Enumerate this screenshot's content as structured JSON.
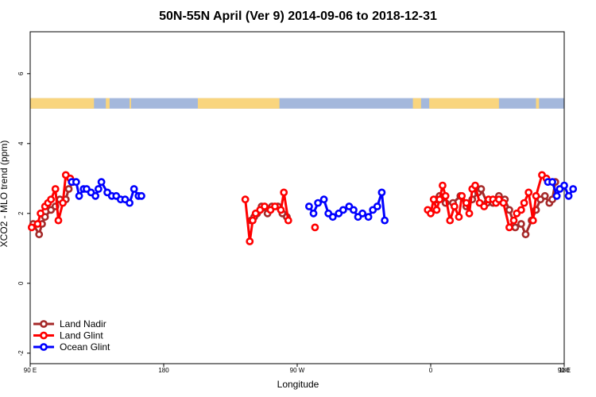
{
  "chart_data": {
    "type": "line",
    "title": "50N-55N April (Ver 9)   2014-09-06 to 2018-12-31",
    "xlabel": "Longitude",
    "ylabel": "XCO2 - MLO trend (ppm)",
    "xlim": [
      90,
      450
    ],
    "ylim": [
      -2.3,
      7.2
    ],
    "x_ticks": [
      {
        "value": 90,
        "label": "90 E"
      },
      {
        "value": 180,
        "label": "180"
      },
      {
        "value": 270,
        "label": "90 W"
      },
      {
        "value": 360,
        "label": "0"
      },
      {
        "value": 450,
        "label": "90 E"
      }
    ],
    "x_ticks_right": [
      {
        "value": 450,
        "label": "180"
      }
    ],
    "y_ticks": [
      {
        "value": -2,
        "label": "-2"
      },
      {
        "value": 0,
        "label": "0"
      },
      {
        "value": 2,
        "label": "2"
      },
      {
        "value": 4,
        "label": "4"
      },
      {
        "value": 6,
        "label": "6"
      }
    ],
    "land_ocean_strip": {
      "y_range": [
        5.0,
        5.3
      ],
      "land_color": "#F9D57E",
      "ocean_color": "#A4B8DC",
      "land_segments": [
        [
          90,
          133
        ],
        [
          141,
          143.5
        ],
        [
          157,
          158
        ],
        [
          203,
          258
        ],
        [
          348,
          353.5
        ],
        [
          359,
          406
        ],
        [
          431,
          433
        ]
      ]
    },
    "legend": {
      "position": "bottom-left",
      "entries": [
        "Land Nadir",
        "Land Glint",
        "Ocean Glint"
      ]
    },
    "series": [
      {
        "name": "Land Nadir",
        "color": "#A52A2A",
        "segments": [
          [
            [
              92,
              1.7
            ],
            [
              96,
              1.4
            ],
            [
              98,
              1.7
            ],
            [
              100,
              1.9
            ],
            [
              104,
              2.1
            ],
            [
              107,
              2.2
            ],
            [
              110,
              2.4
            ],
            [
              114,
              2.4
            ],
            [
              116,
              2.7
            ],
            [
              119,
              2.9
            ]
          ],
          [
            [
              239,
              1.8
            ],
            [
              241,
              1.9
            ],
            [
              243,
              2.0
            ],
            [
              246,
              2.2
            ],
            [
              250,
              2.0
            ],
            [
              253,
              2.2
            ],
            [
              257,
              2.2
            ],
            [
              260,
              2.0
            ],
            [
              263,
              1.9
            ]
          ],
          [
            [
              364,
              2.4
            ],
            [
              366,
              2.5
            ],
            [
              370,
              2.3
            ],
            [
              375,
              2.3
            ],
            [
              380,
              2.5
            ],
            [
              384,
              2.2
            ],
            [
              388,
              2.4
            ],
            [
              392,
              2.6
            ],
            [
              394,
              2.7
            ],
            [
              398,
              2.3
            ],
            [
              402,
              2.3
            ],
            [
              406,
              2.5
            ],
            [
              410,
              2.4
            ],
            [
              413,
              2.1
            ],
            [
              417,
              1.6
            ],
            [
              421,
              1.7
            ],
            [
              424,
              1.4
            ],
            [
              428,
              1.8
            ],
            [
              431,
              2.1
            ],
            [
              434,
              2.4
            ],
            [
              437,
              2.5
            ],
            [
              440,
              2.3
            ],
            [
              442,
              2.4
            ],
            [
              444,
              2.9
            ]
          ]
        ]
      },
      {
        "name": "Land Glint",
        "color": "#FF0000",
        "segments": [
          [
            [
              91,
              1.6
            ],
            [
              95,
              1.7
            ],
            [
              97,
              2.0
            ],
            [
              100,
              2.2
            ],
            [
              102,
              2.3
            ],
            [
              104,
              2.4
            ],
            [
              107,
              2.7
            ],
            [
              109,
              1.8
            ],
            [
              112,
              2.3
            ],
            [
              114,
              3.1
            ],
            [
              117,
              3.0
            ]
          ],
          [
            [
              235,
              2.4
            ],
            [
              238,
              1.2
            ],
            [
              240,
              1.8
            ],
            [
              242,
              2.0
            ],
            [
              245,
              2.1
            ],
            [
              248,
              2.2
            ],
            [
              252,
              2.1
            ],
            [
              255,
              2.2
            ],
            [
              259,
              2.1
            ],
            [
              261,
              2.6
            ],
            [
              264,
              1.8
            ]
          ],
          [
            [
              282,
              1.6
            ]
          ],
          [
            [
              358,
              2.1
            ],
            [
              360,
              2.0
            ],
            [
              362,
              2.4
            ],
            [
              364,
              2.1
            ],
            [
              366,
              2.4
            ],
            [
              368,
              2.8
            ],
            [
              370,
              2.5
            ],
            [
              373,
              1.8
            ],
            [
              376,
              2.2
            ],
            [
              379,
              1.9
            ],
            [
              381,
              2.5
            ],
            [
              384,
              2.3
            ],
            [
              386,
              2.0
            ],
            [
              388,
              2.7
            ],
            [
              390,
              2.8
            ],
            [
              393,
              2.3
            ],
            [
              396,
              2.2
            ],
            [
              399,
              2.4
            ],
            [
              402,
              2.4
            ],
            [
              404,
              2.3
            ],
            [
              406,
              2.4
            ],
            [
              409,
              2.3
            ],
            [
              413,
              1.6
            ],
            [
              416,
              1.8
            ],
            [
              418,
              2.0
            ],
            [
              421,
              2.1
            ],
            [
              423,
              2.3
            ],
            [
              426,
              2.6
            ],
            [
              429,
              1.8
            ],
            [
              431,
              2.5
            ],
            [
              435,
              3.1
            ],
            [
              438,
              3.0
            ]
          ]
        ]
      },
      {
        "name": "Ocean Glint",
        "color": "#0000FF",
        "segments": [
          [
            [
              118,
              2.9
            ],
            [
              121,
              2.9
            ],
            [
              123,
              2.5
            ],
            [
              126,
              2.7
            ],
            [
              128,
              2.7
            ],
            [
              131,
              2.6
            ],
            [
              134,
              2.5
            ],
            [
              136,
              2.7
            ],
            [
              138,
              2.9
            ],
            [
              142,
              2.6
            ],
            [
              145,
              2.5
            ],
            [
              148,
              2.5
            ],
            [
              151,
              2.4
            ],
            [
              154,
              2.4
            ],
            [
              157,
              2.3
            ],
            [
              160,
              2.7
            ],
            [
              163,
              2.5
            ],
            [
              165,
              2.5
            ]
          ],
          [
            [
              278,
              2.2
            ],
            [
              281,
              2.0
            ],
            [
              284,
              2.3
            ],
            [
              288,
              2.4
            ],
            [
              291,
              2.0
            ],
            [
              294,
              1.9
            ],
            [
              298,
              2.0
            ],
            [
              301,
              2.1
            ],
            [
              305,
              2.2
            ],
            [
              308,
              2.1
            ],
            [
              311,
              1.9
            ],
            [
              314,
              2.0
            ],
            [
              318,
              1.9
            ],
            [
              321,
              2.1
            ],
            [
              324,
              2.2
            ],
            [
              327,
              2.6
            ],
            [
              329,
              1.8
            ]
          ],
          [
            [
              439,
              2.9
            ],
            [
              442,
              2.9
            ],
            [
              445,
              2.5
            ],
            [
              447,
              2.7
            ],
            [
              450,
              2.8
            ],
            [
              453,
              2.5
            ],
            [
              456,
              2.7
            ]
          ]
        ]
      }
    ]
  }
}
